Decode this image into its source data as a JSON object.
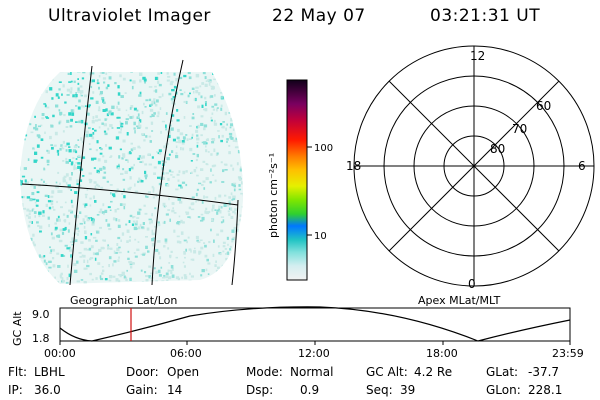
{
  "header": {
    "title": "Ultraviolet Imager",
    "date": "22 May 07",
    "time": "03:21:31 UT"
  },
  "colorbar": {
    "unit_label": "photon cm⁻²s⁻¹",
    "tick_labels": [
      "100",
      "10"
    ]
  },
  "polar_plot": {
    "mlt_labels": {
      "top": "12",
      "left": "18",
      "right": "6",
      "bottom": "0"
    },
    "lat_labels": [
      "60",
      "70",
      "80"
    ]
  },
  "captions": {
    "left": "Geographic Lat/Lon",
    "right": "Apex MLat/MLT"
  },
  "altitude_plot": {
    "ylabel": "GC Alt",
    "yticks": [
      "9.0",
      "1.8"
    ],
    "xticks": [
      "00:00",
      "06:00",
      "12:00",
      "18:00",
      "23:59"
    ],
    "marker_color": "#d01010"
  },
  "info": {
    "row1": [
      {
        "label": "Flt:",
        "value": "LBHL"
      },
      {
        "label": "Door:",
        "value": "Open"
      },
      {
        "label": "Mode:",
        "value": "Normal"
      },
      {
        "label": "GC Alt:",
        "value": "4.2 Re"
      },
      {
        "label": "GLat:",
        "value": "-37.7"
      }
    ],
    "row2": [
      {
        "label": "IP:",
        "value": "36.0"
      },
      {
        "label": "Gain:",
        "value": "14"
      },
      {
        "label": "Dsp:",
        "value": "0.9"
      },
      {
        "label": "Seq:",
        "value": "39"
      },
      {
        "label": "GLon:",
        "value": "228.1"
      }
    ]
  },
  "colors": {
    "speckle_bright": "#33d6c9",
    "speckle_mid": "#8fe0d9",
    "speckle_faint": "#c9e9e6"
  }
}
